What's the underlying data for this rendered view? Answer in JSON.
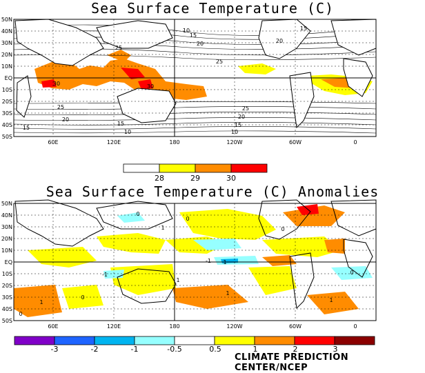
{
  "top_map": {
    "title": "Sea Surface Temperature (C)",
    "lat_labels": [
      "50N",
      "40N",
      "30N",
      "20N",
      "10N",
      "EQ",
      "10S",
      "20S",
      "30S",
      "40S",
      "50S"
    ],
    "lon_labels": [
      "60E",
      "120E",
      "180",
      "120W",
      "60W",
      "0"
    ],
    "contour_labels": [
      "10",
      "15",
      "20",
      "25",
      "30",
      "30",
      "25",
      "20",
      "15",
      "10",
      "15",
      "20",
      "25",
      "25",
      "20",
      "15",
      "10",
      "15"
    ],
    "colorbar": {
      "ticks": [
        "28",
        "29",
        "30"
      ],
      "colors": [
        "#ffffff",
        "#ffff00",
        "#ff8c00",
        "#ff0000"
      ]
    }
  },
  "bottom_map": {
    "title": "Sea Surface Temperature (C) Anomalies",
    "lat_labels": [
      "50N",
      "40N",
      "30N",
      "20N",
      "10N",
      "EQ",
      "10S",
      "20S",
      "30S",
      "40S",
      "50S"
    ],
    "lon_labels": [
      "60E",
      "120E",
      "180",
      "120W",
      "60W",
      "0"
    ],
    "contour_labels": [
      "0",
      "1",
      "0",
      "-1",
      "1",
      "0",
      "1",
      "0",
      "1",
      "-1",
      "0",
      "1",
      "1",
      "0"
    ],
    "colorbar": {
      "ticks": [
        "-3",
        "-2",
        "-1",
        "-0.5",
        "0.5",
        "1",
        "2",
        "3"
      ],
      "colors": [
        "#8000c8",
        "#1e64ff",
        "#00b4f0",
        "#96ffff",
        "#ffffff",
        "#ffff00",
        "#ff8c00",
        "#ff0000",
        "#8b0000"
      ]
    }
  },
  "credit": "CLIMATE PREDICTION CENTER/NCEP"
}
